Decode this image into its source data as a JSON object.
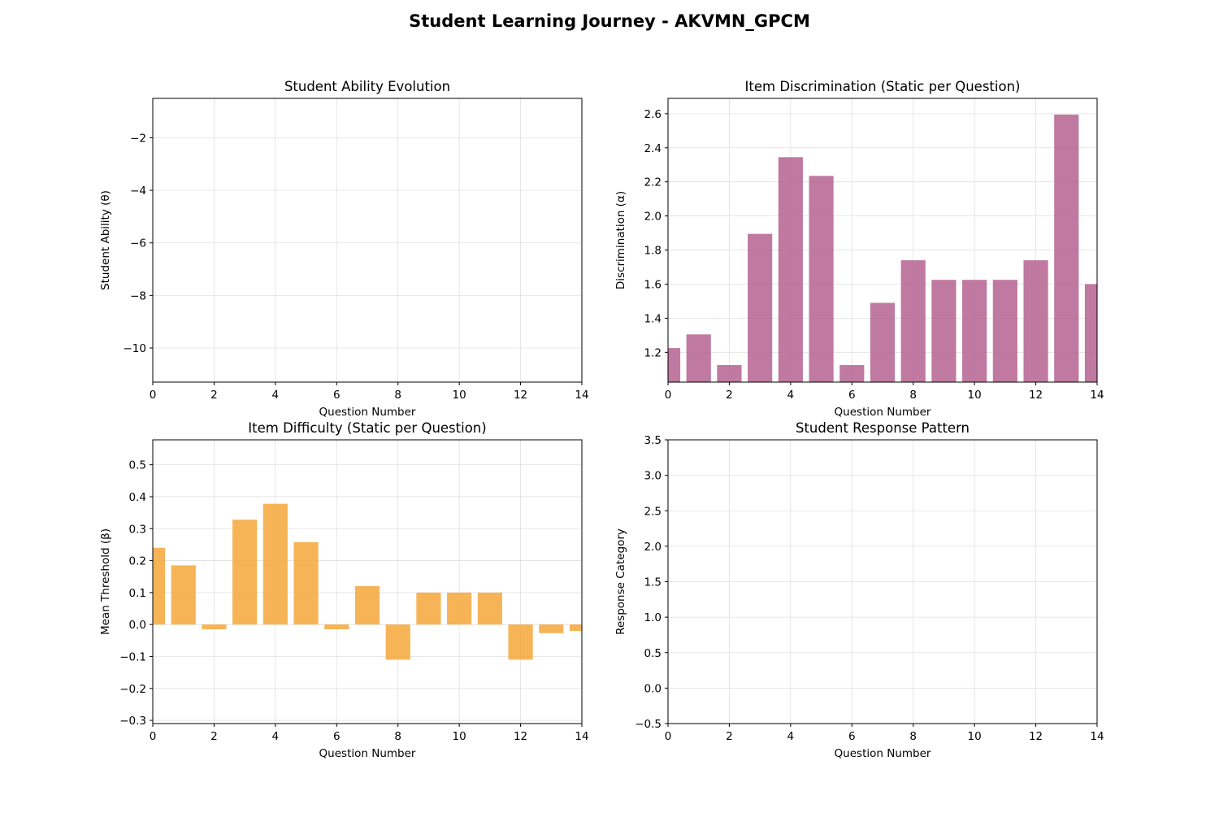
{
  "figure": {
    "title": "Student Learning Journey - AKVMN_GPCM"
  },
  "colors": {
    "discrimination_bar": "#b5618f",
    "difficulty_bar": "#f4a73a",
    "grid": "#e0e0e0",
    "axis": "#000000"
  },
  "chart_data": [
    {
      "id": "ability",
      "type": "line",
      "title": "Student Ability Evolution",
      "xlabel": "Question Number",
      "ylabel": "Student Ability (θ)",
      "xlim": [
        0,
        14
      ],
      "ylim": [
        -11.3,
        -0.5
      ],
      "xticks": [
        0,
        2,
        4,
        6,
        8,
        10,
        12,
        14
      ],
      "yticks": [
        -10,
        -8,
        -6,
        -4,
        -2
      ],
      "grid": true,
      "series": []
    },
    {
      "id": "discrimination",
      "type": "bar",
      "title": "Item Discrimination (Static per Question)",
      "xlabel": "Question Number",
      "ylabel": "Discrimination (α)",
      "xlim": [
        0,
        14
      ],
      "ylim": [
        1.025,
        2.69
      ],
      "xticks": [
        0,
        2,
        4,
        6,
        8,
        10,
        12,
        14
      ],
      "yticks": [
        1.2,
        1.4,
        1.6,
        1.8,
        2.0,
        2.2,
        2.4,
        2.6
      ],
      "grid": true,
      "x": [
        0,
        1,
        2,
        3,
        4,
        5,
        6,
        7,
        8,
        9,
        10,
        11,
        12,
        13,
        14
      ],
      "values": [
        1.225,
        1.305,
        1.125,
        1.895,
        2.345,
        2.235,
        1.125,
        1.49,
        1.74,
        1.625,
        1.625,
        1.625,
        1.74,
        2.595,
        1.6
      ]
    },
    {
      "id": "difficulty",
      "type": "bar",
      "title": "Item Difficulty (Static per Question)",
      "xlabel": "Question Number",
      "ylabel": "Mean Threshold (β)",
      "xlim": [
        0,
        14
      ],
      "ylim": [
        -0.31,
        0.578
      ],
      "xticks": [
        0,
        2,
        4,
        6,
        8,
        10,
        12,
        14
      ],
      "yticks": [
        -0.3,
        -0.2,
        -0.1,
        0.0,
        0.1,
        0.2,
        0.3,
        0.4,
        0.5
      ],
      "grid": true,
      "x": [
        0,
        1,
        2,
        3,
        4,
        5,
        6,
        7,
        8,
        9,
        10,
        11,
        12,
        13,
        14
      ],
      "values": [
        0.24,
        0.185,
        -0.015,
        0.328,
        0.378,
        0.258,
        -0.015,
        0.12,
        -0.11,
        0.1,
        0.1,
        0.1,
        -0.11,
        -0.027,
        -0.02
      ]
    },
    {
      "id": "response",
      "type": "scatter",
      "title": "Student Response Pattern",
      "xlabel": "Question Number",
      "ylabel": "Response Category",
      "xlim": [
        0,
        14
      ],
      "ylim": [
        -0.5,
        3.5
      ],
      "xticks": [
        0,
        2,
        4,
        6,
        8,
        10,
        12,
        14
      ],
      "yticks": [
        -0.5,
        0.0,
        0.5,
        1.0,
        1.5,
        2.0,
        2.5,
        3.0,
        3.5
      ],
      "grid": true,
      "series": []
    }
  ]
}
